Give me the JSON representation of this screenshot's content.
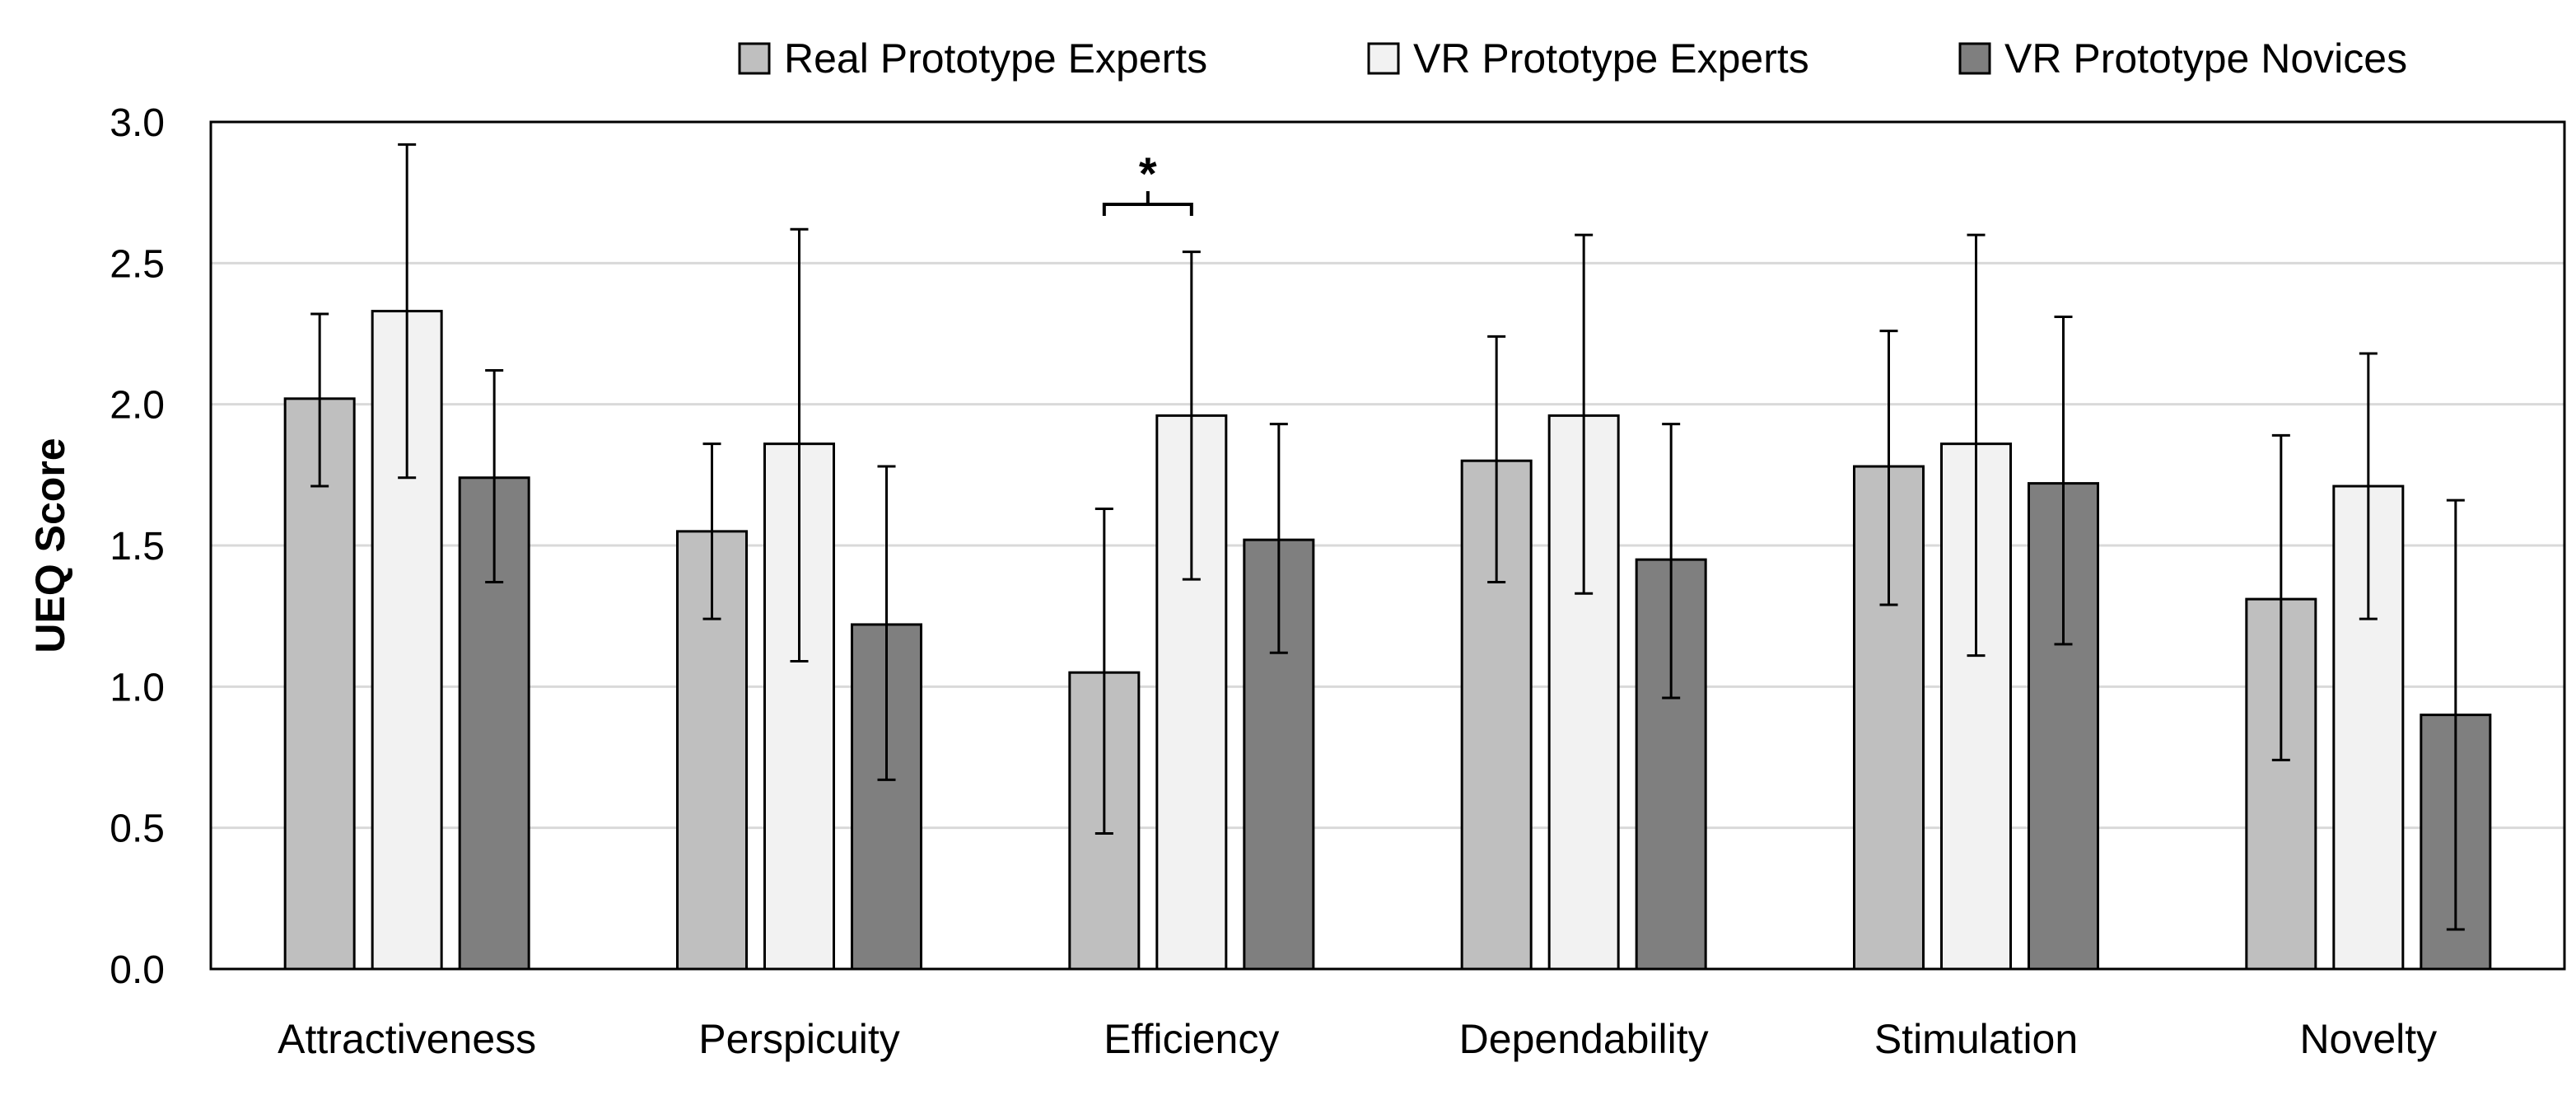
{
  "chart_data": {
    "type": "bar",
    "ylabel": "UEQ Score",
    "ylim": [
      0,
      3
    ],
    "yticks": [
      "0.0",
      "0.5",
      "1.0",
      "1.5",
      "2.0",
      "2.5",
      "3.0"
    ],
    "grid": true,
    "legend_position": "top-right",
    "categories": [
      "Attractiveness",
      "Perspicuity",
      "Efficiency",
      "Dependability",
      "Stimulation",
      "Novelty"
    ],
    "series": [
      {
        "name": "Real Prototype Experts",
        "color": "#bfbfbf",
        "values": [
          2.02,
          1.55,
          1.05,
          1.8,
          1.78,
          1.31
        ],
        "error_low": [
          1.71,
          1.24,
          0.48,
          1.37,
          1.29,
          0.74
        ],
        "error_high": [
          2.32,
          1.86,
          1.63,
          2.24,
          2.26,
          1.89
        ]
      },
      {
        "name": "VR Prototype Experts",
        "color": "#f2f2f2",
        "values": [
          2.33,
          1.86,
          1.96,
          1.96,
          1.86,
          1.71
        ],
        "error_low": [
          1.74,
          1.09,
          1.38,
          1.33,
          1.11,
          1.24
        ],
        "error_high": [
          2.92,
          2.62,
          2.54,
          2.6,
          2.6,
          2.18
        ]
      },
      {
        "name": "VR Prototype Novices",
        "color": "#7f7f7f",
        "values": [
          1.74,
          1.22,
          1.52,
          1.45,
          1.72,
          0.9
        ],
        "error_low": [
          1.37,
          0.67,
          1.12,
          0.96,
          1.15,
          0.14
        ],
        "error_high": [
          2.12,
          1.78,
          1.93,
          1.93,
          2.31,
          1.66
        ]
      }
    ],
    "annotations": [
      {
        "text": "*",
        "category": "Efficiency",
        "between_series": [
          0,
          1
        ]
      }
    ]
  }
}
